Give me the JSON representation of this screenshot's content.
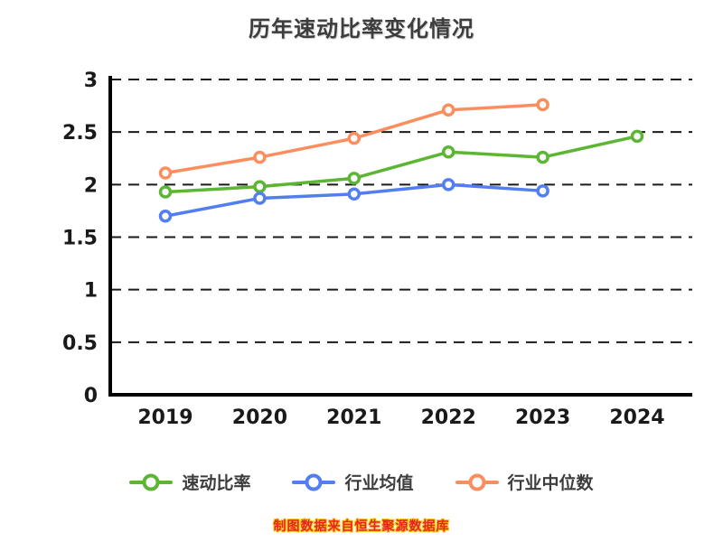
{
  "title": "历年速动比率变化情况",
  "footer": "制图数据来自恒生聚源数据库",
  "axis": {
    "ytick_labels": [
      "0",
      "0.5",
      "1",
      "1.5",
      "2",
      "2.5",
      "3"
    ],
    "xtick_labels": [
      "2019",
      "2020",
      "2021",
      "2022",
      "2023",
      "2024"
    ]
  },
  "legend": [
    {
      "label": "速动比率",
      "color": "#5cb535"
    },
    {
      "label": "行业均值",
      "color": "#537ef2"
    },
    {
      "label": "行业中位数",
      "color": "#fb8e5e"
    }
  ],
  "chart_data": {
    "type": "line",
    "title": "历年速动比率变化情况",
    "x": [
      2019,
      2020,
      2021,
      2022,
      2023,
      2024
    ],
    "series": [
      {
        "name": "速动比率",
        "color": "#5cb535",
        "values": [
          1.93,
          1.98,
          2.06,
          2.31,
          2.26,
          2.46
        ]
      },
      {
        "name": "行业均值",
        "color": "#537ef2",
        "values": [
          1.7,
          1.87,
          1.91,
          2.0,
          1.94,
          null
        ]
      },
      {
        "name": "行业中位数",
        "color": "#fb8e5e",
        "values": [
          2.11,
          2.26,
          2.44,
          2.71,
          2.76,
          null
        ]
      }
    ],
    "ylim": [
      0,
      3
    ],
    "yticks": [
      0,
      0.5,
      1,
      1.5,
      2,
      2.5,
      3
    ],
    "grid": "dashed-horizontal",
    "legend_position": "bottom",
    "marker": "open-circle"
  }
}
